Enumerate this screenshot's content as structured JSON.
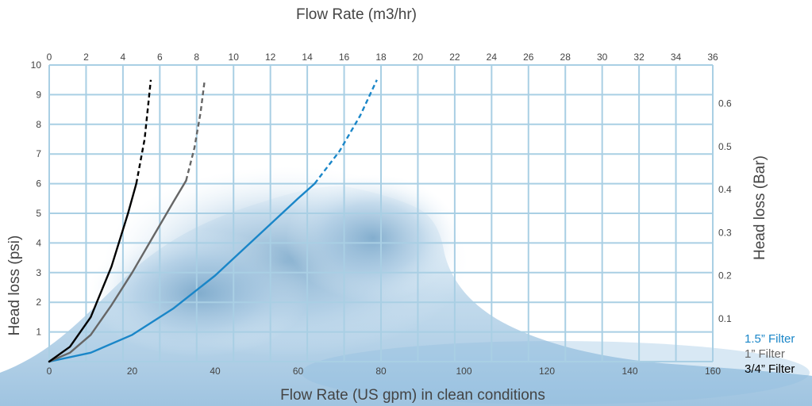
{
  "chart_data": {
    "type": "line",
    "x_top_label": "Flow Rate (m3/hr)",
    "x_bottom_label": "Flow Rate (US gpm) in clean conditions",
    "y_left_label": "Head loss (psi)",
    "y_right_label": "Head loss (Bar)",
    "x_top_ticks": [
      "0",
      "2",
      "4",
      "6",
      "8",
      "10",
      "12",
      "14",
      "16",
      "18",
      "20",
      "22",
      "24",
      "26",
      "28",
      "30",
      "32",
      "34",
      "36"
    ],
    "x_bottom_ticks": [
      "0",
      "20",
      "40",
      "60",
      "80",
      "100",
      "120",
      "140",
      "160"
    ],
    "y_left_ticks": [
      "1",
      "2",
      "3",
      "4",
      "5",
      "6",
      "7",
      "8",
      "9",
      "10"
    ],
    "y_right_ticks": [
      "0.1",
      "0.2",
      "0.3",
      "0.4",
      "0.5",
      "0.6"
    ],
    "xlim_gpm": [
      0,
      160
    ],
    "ylim_psi": [
      0,
      10
    ],
    "grid": true,
    "legend_position": "bottom-right",
    "series": [
      {
        "name": "1.5” Filter",
        "color": "#1a86c8",
        "solid": [
          [
            0,
            0
          ],
          [
            10,
            0.3
          ],
          [
            20,
            0.9
          ],
          [
            30,
            1.8
          ],
          [
            40,
            2.9
          ],
          [
            50,
            4.2
          ],
          [
            60,
            5.5
          ],
          [
            64,
            6.0
          ]
        ],
        "dashed": [
          [
            64,
            6.0
          ],
          [
            70,
            7.1
          ],
          [
            75,
            8.3
          ],
          [
            79,
            9.5
          ]
        ]
      },
      {
        "name": "1” Filter",
        "color": "#666666",
        "solid": [
          [
            0,
            0
          ],
          [
            5,
            0.3
          ],
          [
            10,
            0.9
          ],
          [
            15,
            1.9
          ],
          [
            20,
            3.0
          ],
          [
            25,
            4.2
          ],
          [
            30,
            5.4
          ],
          [
            33,
            6.1
          ]
        ],
        "dashed": [
          [
            33,
            6.1
          ],
          [
            35,
            7.2
          ],
          [
            36.5,
            8.4
          ],
          [
            37.5,
            9.5
          ]
        ]
      },
      {
        "name": "3/4” Filter",
        "color": "#000000",
        "solid": [
          [
            0,
            0
          ],
          [
            5,
            0.5
          ],
          [
            10,
            1.5
          ],
          [
            15,
            3.2
          ],
          [
            19,
            5.0
          ],
          [
            21,
            6.0
          ]
        ],
        "dashed": [
          [
            21,
            6.0
          ],
          [
            23,
            7.5
          ],
          [
            24.5,
            9.5
          ]
        ]
      }
    ]
  }
}
